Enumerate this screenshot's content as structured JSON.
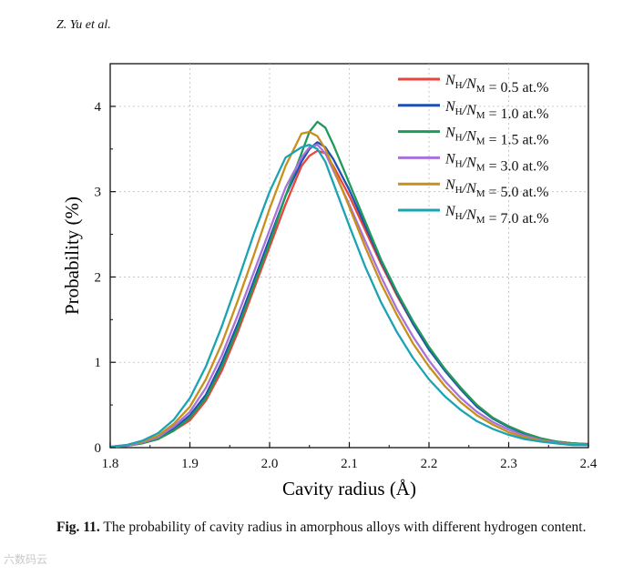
{
  "header": {
    "authors": "Z. Yu et al."
  },
  "caption": {
    "label": "Fig. 11.",
    "text": "The probability of cavity radius in amorphous alloys with different hydrogen content."
  },
  "watermark": "六数码云",
  "chart_data": {
    "type": "line",
    "title": "",
    "xlabel": "Cavity radius (Å)",
    "ylabel": "Probability (%)",
    "xlim": [
      1.8,
      2.4
    ],
    "ylim": [
      0,
      4.5
    ],
    "xticks": [
      "1.8",
      "1.9",
      "2.0",
      "2.1",
      "2.2",
      "2.3",
      "2.4"
    ],
    "yticks": [
      "0",
      "1",
      "2",
      "3",
      "4"
    ],
    "grid": true,
    "legend_position": "top-right",
    "x": [
      1.8,
      1.82,
      1.84,
      1.86,
      1.88,
      1.9,
      1.92,
      1.94,
      1.96,
      1.98,
      2.0,
      2.02,
      2.04,
      2.05,
      2.06,
      2.07,
      2.08,
      2.1,
      2.12,
      2.14,
      2.16,
      2.18,
      2.2,
      2.22,
      2.24,
      2.26,
      2.28,
      2.3,
      2.32,
      2.34,
      2.36,
      2.38,
      2.4
    ],
    "series": [
      {
        "name_prefix": "N",
        "name_sub1": "H",
        "name_sep": "/N",
        "name_sub2": "M",
        "name_value": " = 0.5 at.%",
        "color": "#e8453c",
        "values": [
          0.01,
          0.02,
          0.05,
          0.1,
          0.2,
          0.32,
          0.55,
          0.9,
          1.35,
          1.85,
          2.35,
          2.85,
          3.3,
          3.42,
          3.48,
          3.45,
          3.3,
          2.95,
          2.55,
          2.15,
          1.78,
          1.45,
          1.15,
          0.92,
          0.7,
          0.5,
          0.35,
          0.25,
          0.17,
          0.11,
          0.07,
          0.05,
          0.04
        ]
      },
      {
        "name_prefix": "N",
        "name_sub1": "H",
        "name_sep": "/N",
        "name_sub2": "M",
        "name_value": " = 1.0 at.%",
        "color": "#1f4fb4",
        "values": [
          0.01,
          0.02,
          0.05,
          0.11,
          0.22,
          0.38,
          0.62,
          1.0,
          1.45,
          1.95,
          2.45,
          2.95,
          3.35,
          3.5,
          3.58,
          3.52,
          3.38,
          3.02,
          2.6,
          2.18,
          1.8,
          1.45,
          1.15,
          0.9,
          0.68,
          0.48,
          0.34,
          0.24,
          0.16,
          0.1,
          0.07,
          0.05,
          0.04
        ]
      },
      {
        "name_prefix": "N",
        "name_sub1": "H",
        "name_sep": "/N",
        "name_sub2": "M",
        "name_value": " = 1.5 at.%",
        "color": "#1f9a5a",
        "values": [
          0.01,
          0.02,
          0.05,
          0.1,
          0.2,
          0.35,
          0.58,
          0.95,
          1.4,
          1.9,
          2.4,
          2.95,
          3.45,
          3.7,
          3.82,
          3.75,
          3.55,
          3.1,
          2.65,
          2.2,
          1.82,
          1.48,
          1.18,
          0.92,
          0.7,
          0.5,
          0.35,
          0.25,
          0.17,
          0.11,
          0.07,
          0.05,
          0.04
        ]
      },
      {
        "name_prefix": "N",
        "name_sub1": "H",
        "name_sep": "/N",
        "name_sub2": "M",
        "name_value": " = 3.0 at.%",
        "color": "#a872d8",
        "values": [
          0.01,
          0.02,
          0.06,
          0.12,
          0.25,
          0.42,
          0.7,
          1.08,
          1.55,
          2.05,
          2.55,
          3.05,
          3.4,
          3.52,
          3.55,
          3.45,
          3.25,
          2.85,
          2.42,
          2.0,
          1.62,
          1.3,
          1.02,
          0.78,
          0.58,
          0.42,
          0.3,
          0.21,
          0.14,
          0.09,
          0.06,
          0.04,
          0.03
        ]
      },
      {
        "name_prefix": "N",
        "name_sub1": "H",
        "name_sep": "/N",
        "name_sub2": "M",
        "name_value": " = 5.0 at.%",
        "color": "#c8901a",
        "values": [
          0.01,
          0.03,
          0.07,
          0.14,
          0.28,
          0.48,
          0.8,
          1.22,
          1.72,
          2.25,
          2.8,
          3.3,
          3.68,
          3.7,
          3.65,
          3.5,
          3.28,
          2.82,
          2.35,
          1.92,
          1.55,
          1.22,
          0.95,
          0.72,
          0.53,
          0.38,
          0.27,
          0.18,
          0.12,
          0.08,
          0.05,
          0.04,
          0.03
        ]
      },
      {
        "name_prefix": "N",
        "name_sub1": "H",
        "name_sep": "/N",
        "name_sub2": "M",
        "name_value": " = 7.0 at.%",
        "color": "#1aa3b3",
        "values": [
          0.01,
          0.03,
          0.08,
          0.17,
          0.33,
          0.58,
          0.95,
          1.42,
          1.95,
          2.5,
          3.0,
          3.4,
          3.52,
          3.55,
          3.5,
          3.35,
          3.1,
          2.6,
          2.12,
          1.7,
          1.35,
          1.05,
          0.8,
          0.6,
          0.44,
          0.31,
          0.22,
          0.15,
          0.1,
          0.07,
          0.05,
          0.03,
          0.03
        ]
      }
    ]
  }
}
